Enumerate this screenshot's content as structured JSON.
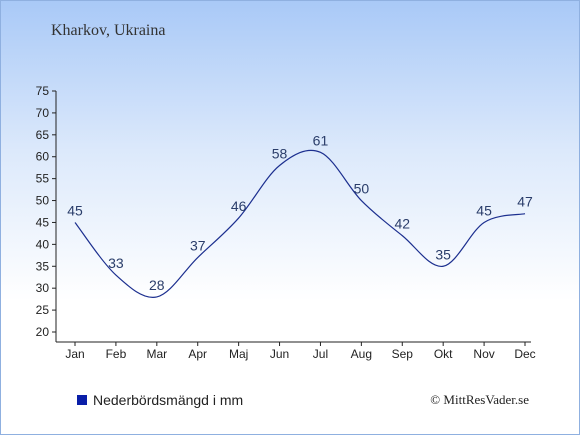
{
  "header": {
    "title": "Kharkov, Ukraina"
  },
  "legend": {
    "label": "Nederbördsmängd i mm",
    "color": "#0a1ea8"
  },
  "credit": {
    "text": "© MittResVader.se"
  },
  "chart_data": {
    "type": "line",
    "categories": [
      "Jan",
      "Feb",
      "Mar",
      "Apr",
      "Maj",
      "Jun",
      "Jul",
      "Aug",
      "Sep",
      "Okt",
      "Nov",
      "Dec"
    ],
    "series": [
      {
        "name": "Nederbördsmängd i mm",
        "values": [
          45,
          33,
          28,
          37,
          46,
          58,
          61,
          50,
          42,
          35,
          45,
          47
        ],
        "color": "#1c2f8f"
      }
    ],
    "ylim": [
      20,
      75
    ],
    "yticks": [
      20,
      25,
      30,
      35,
      40,
      45,
      50,
      55,
      60,
      65,
      70,
      75
    ],
    "legend_position": "bottom-left",
    "grid": false
  }
}
